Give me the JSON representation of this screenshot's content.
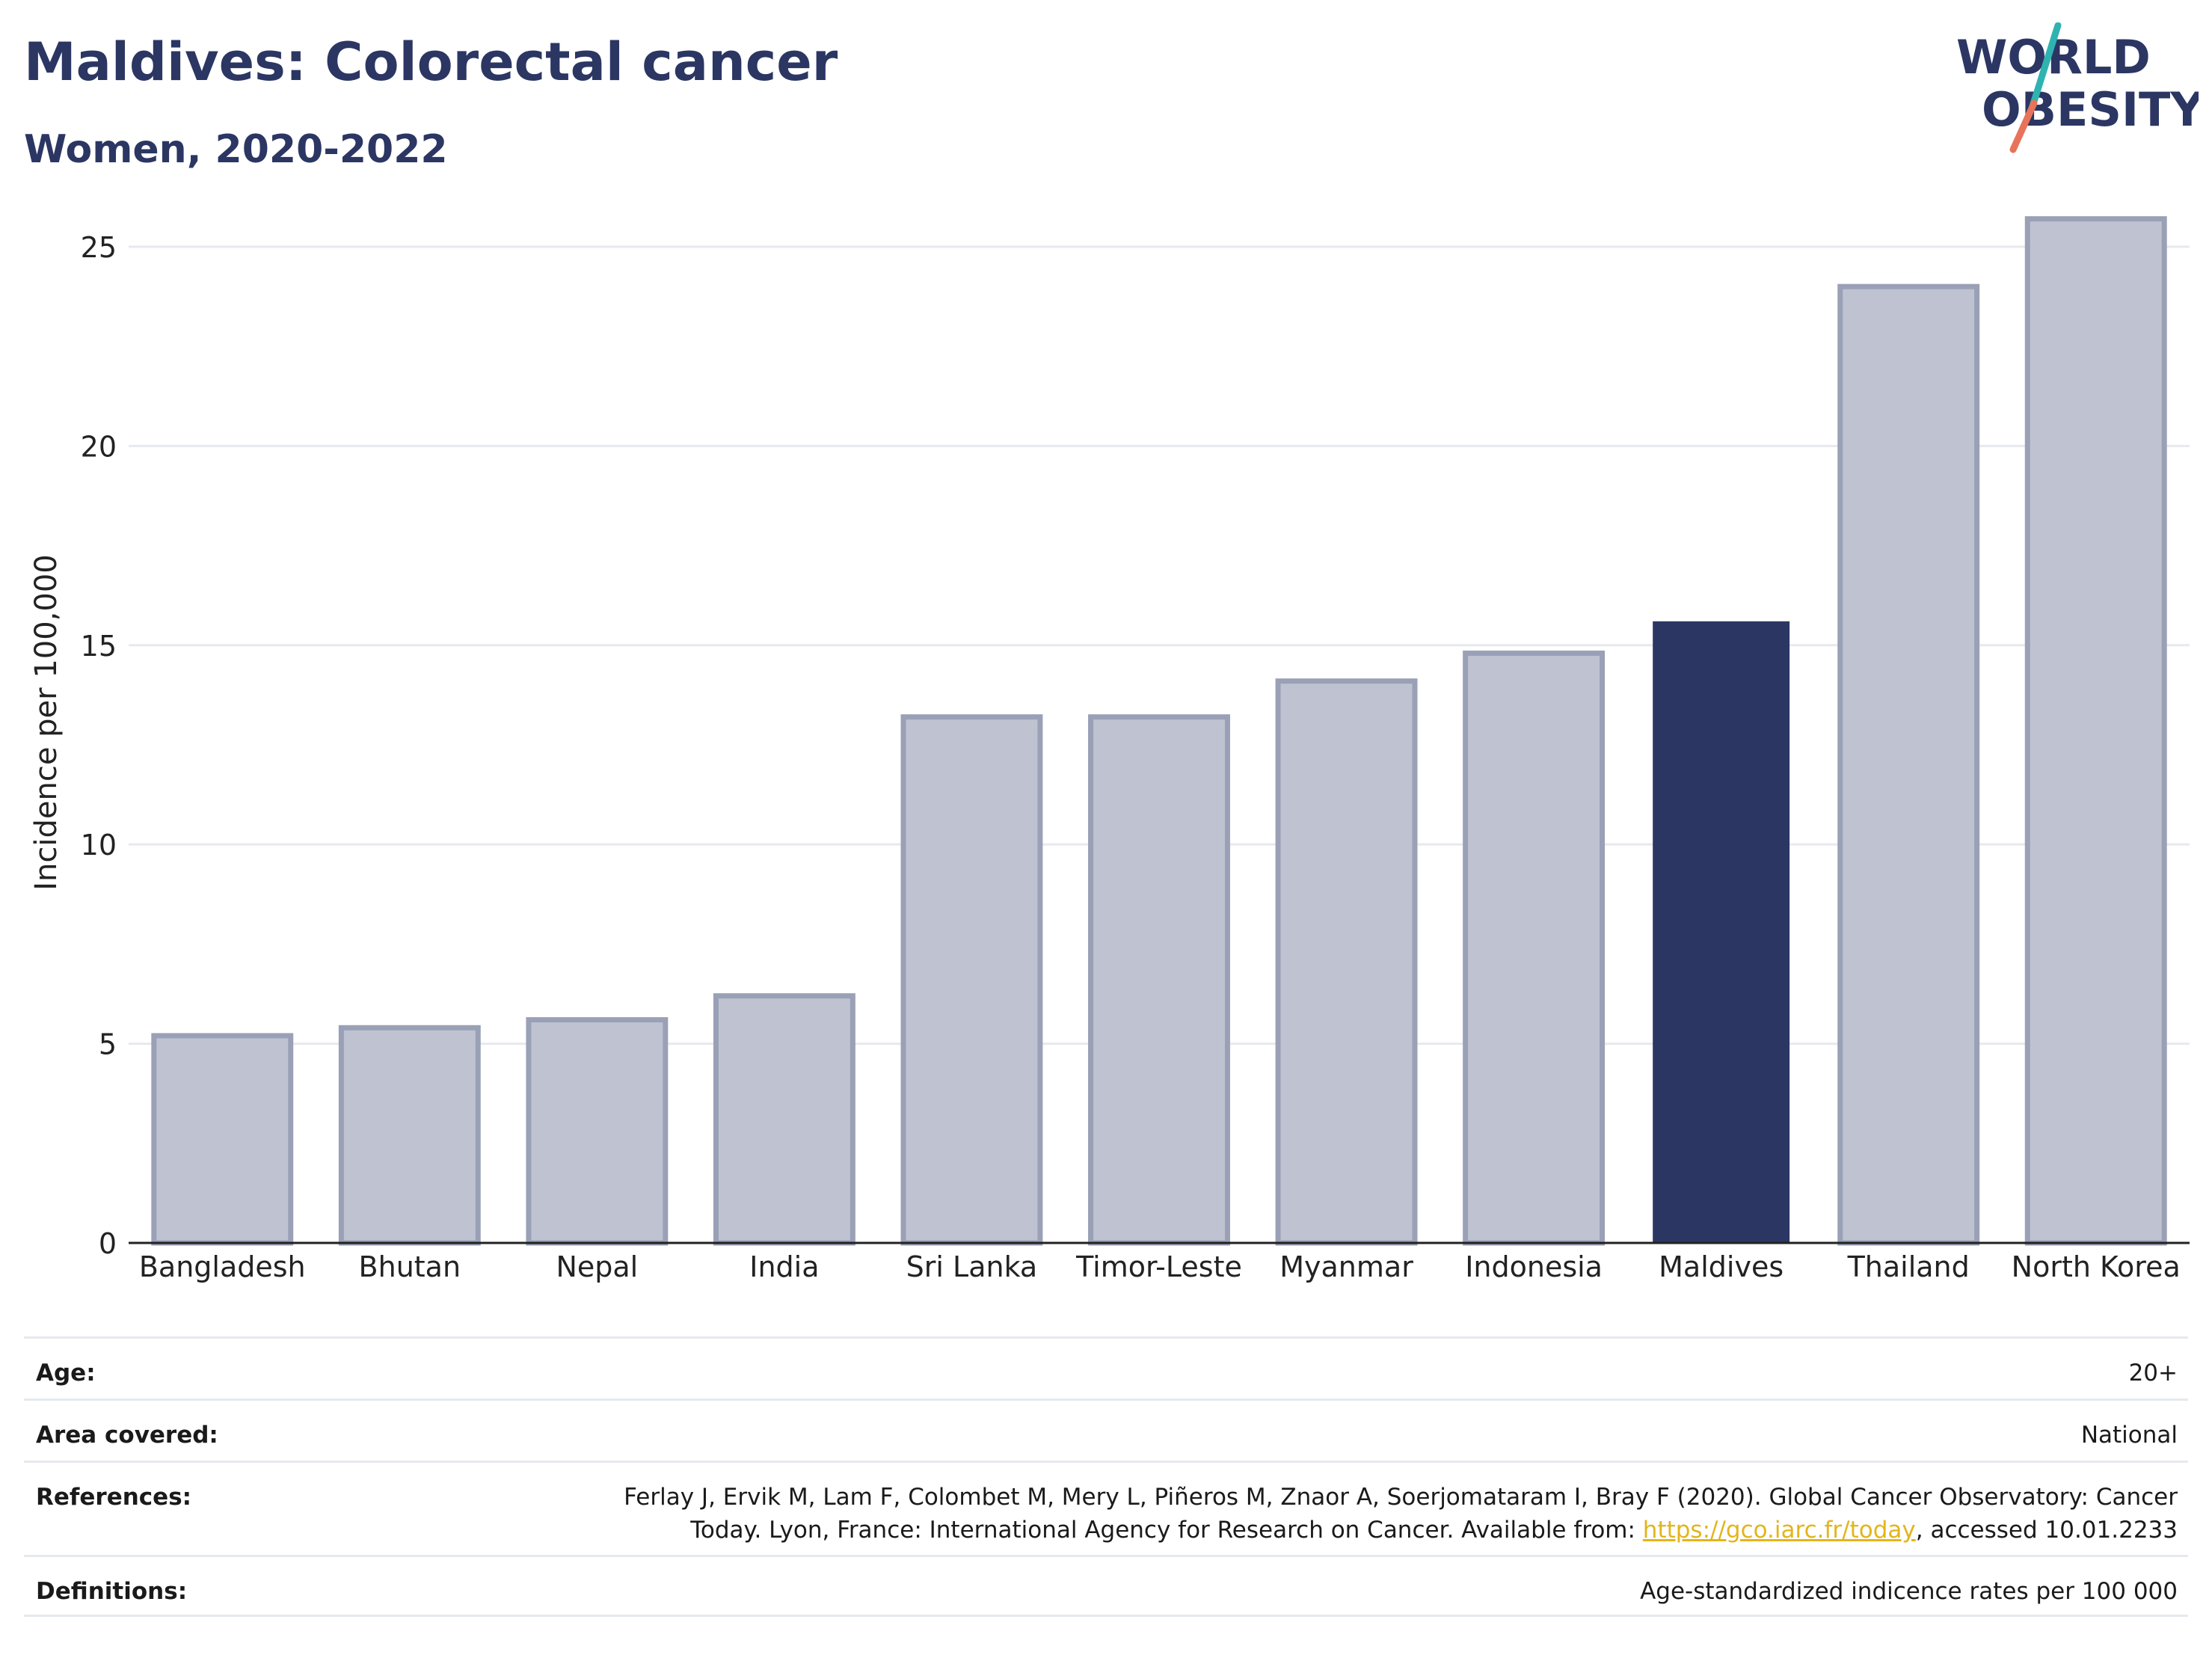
{
  "header": {
    "title": "Maldives: Colorectal cancer",
    "subtitle": "Women, 2020-2022",
    "logo_line1": "WORLD",
    "logo_line2": "OBESITY"
  },
  "chart_data": {
    "type": "bar",
    "categories": [
      "Bangladesh",
      "Bhutan",
      "Nepal",
      "India",
      "Sri Lanka",
      "Timor-Leste",
      "Myanmar",
      "Indonesia",
      "Maldives",
      "Thailand",
      "North Korea"
    ],
    "values": [
      5.2,
      5.4,
      5.6,
      6.2,
      13.2,
      13.2,
      14.1,
      14.8,
      15.6,
      24.0,
      25.7
    ],
    "highlight": "Maldives",
    "ylabel": "Incidence per 100,000",
    "ylim": [
      0,
      26.5
    ],
    "yticks": [
      0,
      5,
      10,
      15,
      20,
      25
    ],
    "grid": true,
    "colors": {
      "bar": "#bfc3d1",
      "bar_edge": "#9aa0b6",
      "highlight": "#2b3663",
      "grid": "#e6e9ee"
    }
  },
  "meta": {
    "age_label": "Age:",
    "age_value": "20+",
    "area_label": "Area covered:",
    "area_value": "National",
    "references_label": "References:",
    "references_text1": "Ferlay J, Ervik M, Lam F, Colombet M, Mery L, Piñeros M, Znaor A, Soerjomataram I, Bray F (2020). Global Cancer Observatory: Cancer",
    "references_text2_pre": "Today. Lyon, France: International Agency for Research on Cancer. Available from: ",
    "references_link": "https://gco.iarc.fr/today",
    "references_text2_post": ", accessed 10.01.2233",
    "definitions_label": "Definitions:",
    "definitions_value": "Age-standardized indicence rates per 100 000"
  }
}
